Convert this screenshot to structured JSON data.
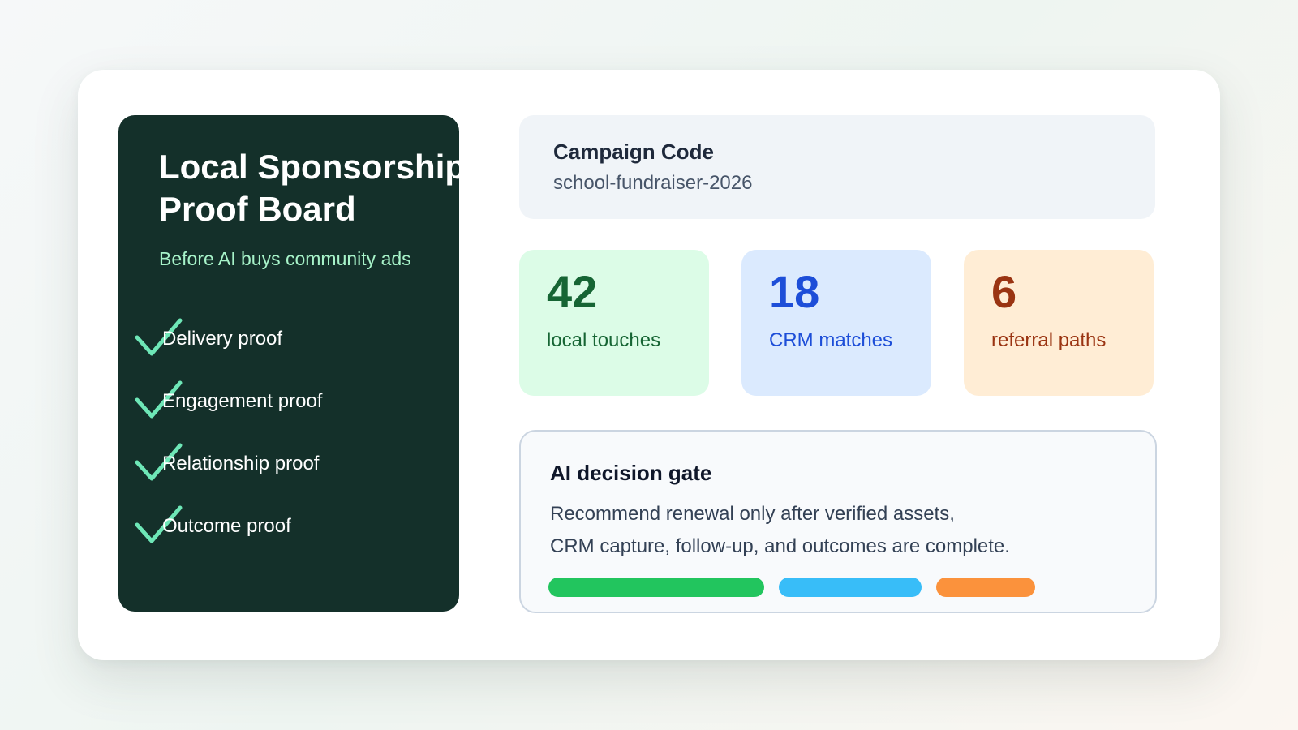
{
  "board": {
    "title_line1": "Local Sponsorship",
    "title_line2": "Proof Board",
    "subtitle": "Before AI buys community ads",
    "checklist": [
      {
        "label": "Delivery proof",
        "icon": "checkmark-icon"
      },
      {
        "label": "Engagement proof",
        "icon": "checkmark-icon"
      },
      {
        "label": "Relationship proof",
        "icon": "checkmark-icon"
      },
      {
        "label": "Outcome proof",
        "icon": "checkmark-icon"
      }
    ]
  },
  "campaign": {
    "title": "Campaign Code",
    "value": "school-fundraiser-2026"
  },
  "stats": [
    {
      "value": "42",
      "label": "local touches",
      "color": "#166534"
    },
    {
      "value": "18",
      "label": "CRM matches",
      "color": "#1d4ed8"
    },
    {
      "value": "6",
      "label": "referral paths",
      "color": "#9a3412"
    }
  ],
  "gate": {
    "title": "AI decision gate",
    "line1": "Recommend renewal only after verified assets,",
    "line2": "CRM capture, follow-up, and outcomes are complete.",
    "bars": [
      {
        "color": "#22c55e"
      },
      {
        "color": "#38bdf8"
      },
      {
        "color": "#fb923c"
      }
    ]
  },
  "colors": {
    "panel": "#14302a",
    "check": "#6ee7b7",
    "subtitle": "#a7f3c9"
  }
}
